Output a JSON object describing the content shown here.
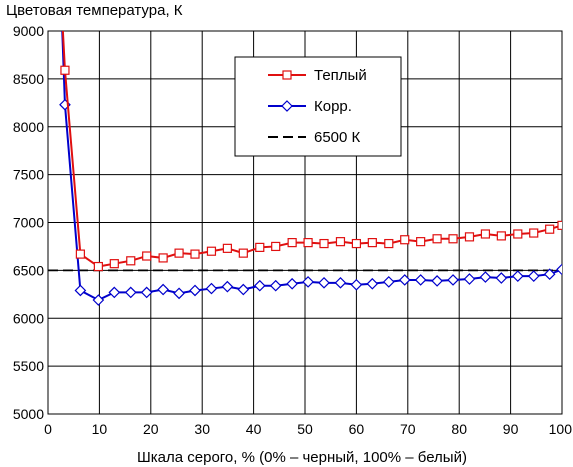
{
  "chart_data": {
    "type": "line",
    "title": "",
    "ylabel": "Цветовая температура, К",
    "xlabel": "Шкала серого, % (0% – черный, 100% – белый)",
    "xlim": [
      0,
      100
    ],
    "ylim": [
      5000,
      9000
    ],
    "xticks": [
      "0",
      "10",
      "20",
      "30",
      "40",
      "50",
      "60",
      "70",
      "80",
      "90",
      "100"
    ],
    "yticks": [
      "5000",
      "5500",
      "6000",
      "6500",
      "7000",
      "7500",
      "8000",
      "8500",
      "9000"
    ],
    "grid": true,
    "legend_position": "top-center",
    "series": [
      {
        "name": "Теплый",
        "color": "#e01010",
        "marker": "square",
        "x": [
          2.5,
          3.3,
          6.3,
          9.8,
          12.9,
          16.1,
          19.2,
          22.4,
          25.5,
          28.6,
          31.8,
          34.9,
          38.0,
          41.2,
          44.3,
          47.5,
          50.6,
          53.7,
          56.9,
          60.0,
          63.1,
          66.3,
          69.4,
          72.5,
          75.7,
          78.8,
          82.0,
          85.1,
          88.2,
          91.4,
          94.5,
          97.6,
          100.0
        ],
        "y": [
          9400,
          8590,
          6670,
          6540,
          6570,
          6600,
          6650,
          6630,
          6680,
          6670,
          6700,
          6730,
          6680,
          6740,
          6750,
          6790,
          6790,
          6780,
          6800,
          6780,
          6790,
          6780,
          6820,
          6800,
          6830,
          6830,
          6850,
          6880,
          6860,
          6880,
          6890,
          6930,
          6970
        ]
      },
      {
        "name": "Корр.",
        "color": "#0000cc",
        "marker": "diamond",
        "x": [
          2.5,
          3.3,
          6.3,
          9.8,
          12.9,
          16.1,
          19.2,
          22.4,
          25.5,
          28.6,
          31.8,
          34.9,
          38.0,
          41.2,
          44.3,
          47.5,
          50.6,
          53.7,
          56.9,
          60.0,
          63.1,
          66.3,
          69.4,
          72.5,
          75.7,
          78.8,
          82.0,
          85.1,
          88.2,
          91.4,
          94.5,
          97.6,
          100.0
        ],
        "y": [
          9400,
          8230,
          6290,
          6190,
          6270,
          6270,
          6270,
          6300,
          6260,
          6290,
          6310,
          6330,
          6300,
          6340,
          6340,
          6360,
          6380,
          6370,
          6370,
          6350,
          6360,
          6380,
          6400,
          6400,
          6390,
          6400,
          6410,
          6430,
          6420,
          6440,
          6440,
          6460,
          6510
        ]
      },
      {
        "name": "6500 К",
        "color": "#000000",
        "marker": "none",
        "dashed": true,
        "x": [
          0,
          100
        ],
        "y": [
          6500,
          6500
        ]
      }
    ]
  }
}
